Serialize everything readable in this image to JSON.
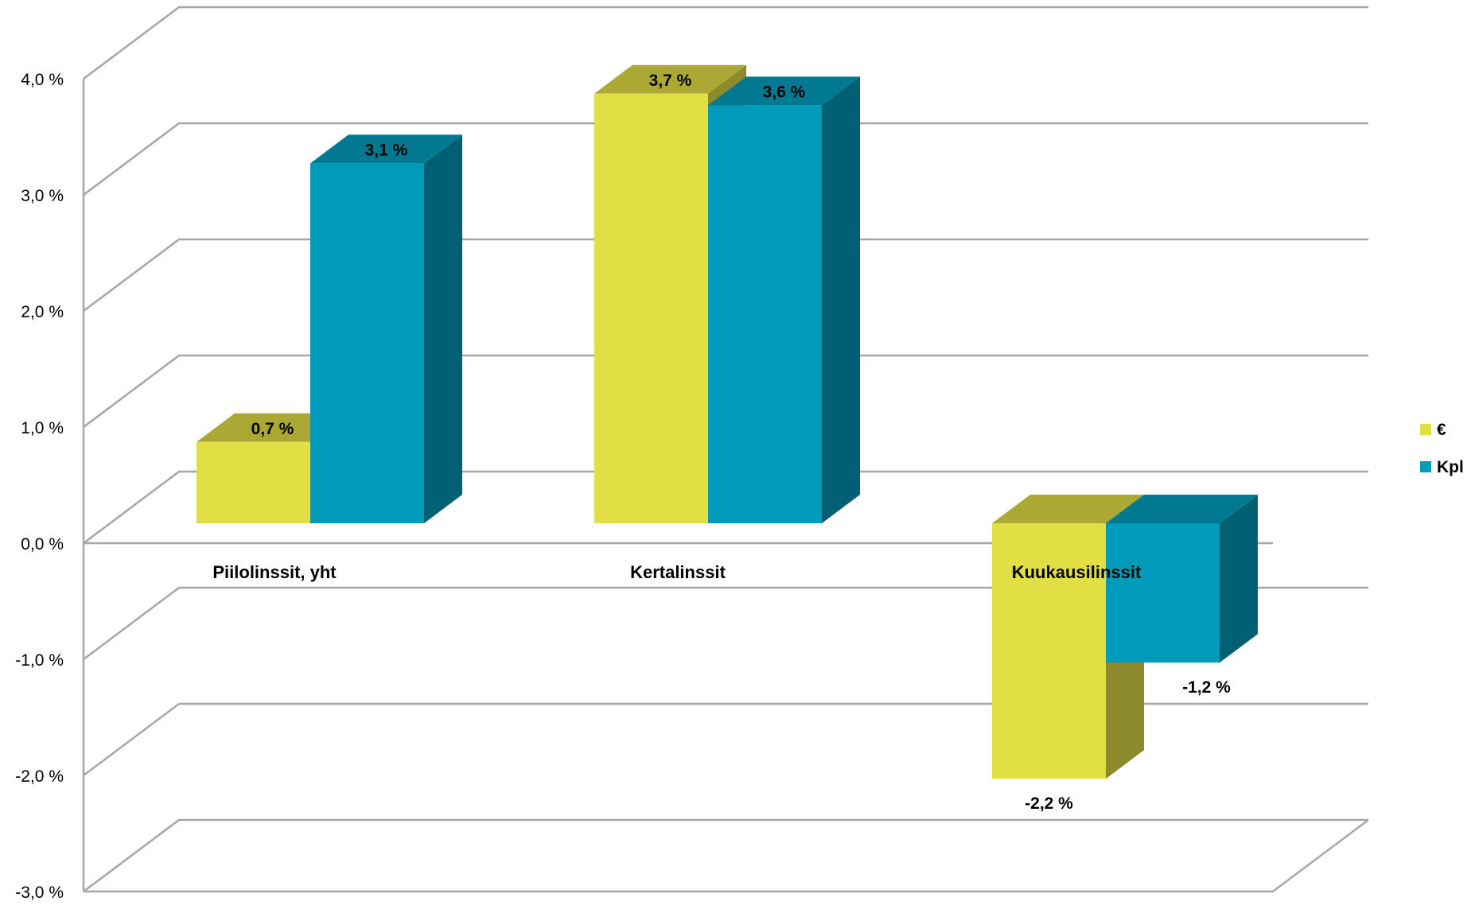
{
  "chart_data": {
    "type": "bar",
    "categories": [
      "Piilolinssit, yht",
      "Kertalinssit",
      "Kuukausilinssit"
    ],
    "series": [
      {
        "name": "€",
        "values": [
          0.7,
          3.7,
          -2.2
        ],
        "labels": [
          "0,7 %",
          "3,7 %",
          "-2,2 %"
        ],
        "color": "#e1df44"
      },
      {
        "name": "Kpl",
        "values": [
          3.1,
          3.6,
          -1.2
        ],
        "labels": [
          "3,1 %",
          "3,6 %",
          "-1,2 %"
        ],
        "color": "#009bba"
      }
    ],
    "ylim": [
      -3.0,
      4.0
    ],
    "yticks": [
      4.0,
      3.0,
      2.0,
      1.0,
      0.0,
      -1.0,
      -2.0,
      -3.0
    ],
    "ytick_labels": [
      "4,0 %",
      "3,0 %",
      "2,0 %",
      "1,0 %",
      "0,0 %",
      "-1,0 %",
      "-2,0 %",
      "-3,0 %"
    ],
    "grid": true,
    "legend_position": "right",
    "three_d": true
  }
}
